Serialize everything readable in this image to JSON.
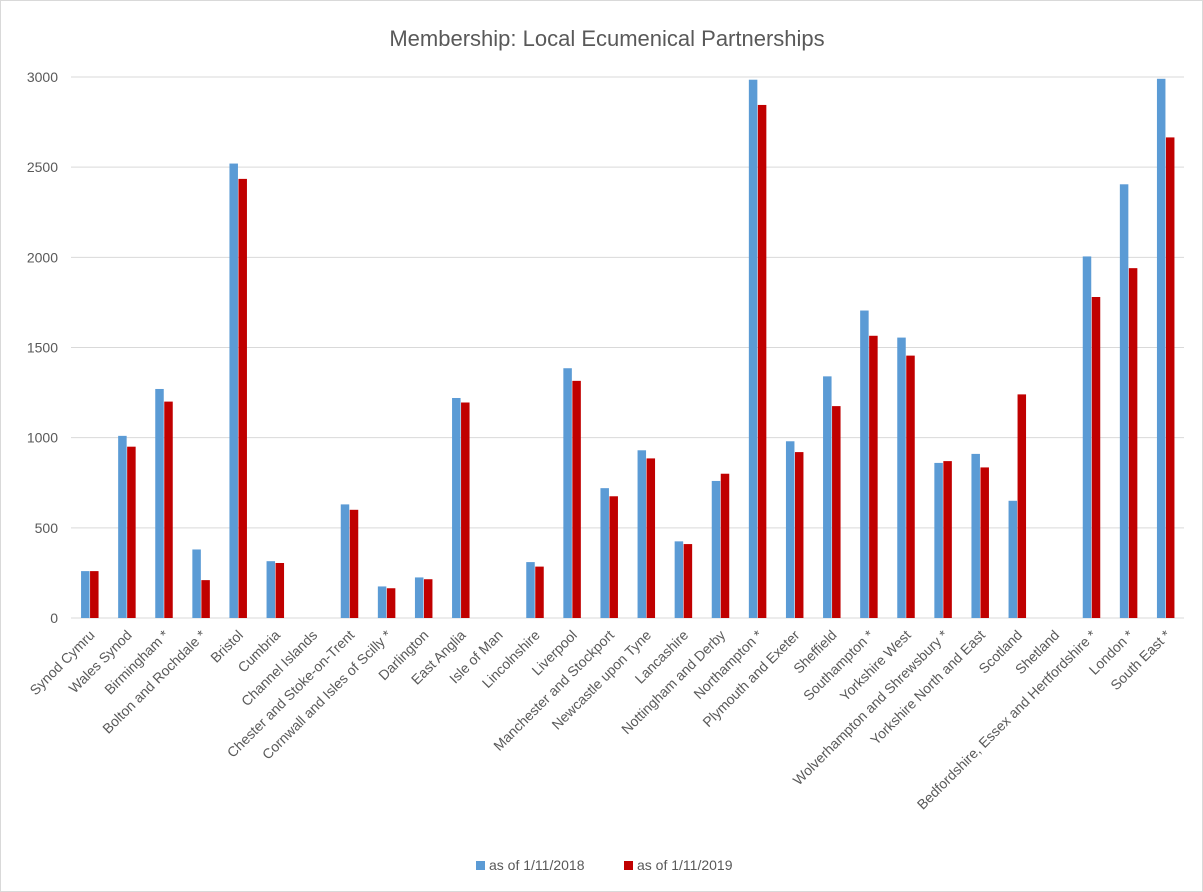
{
  "chart_data": {
    "type": "bar",
    "title": "Membership: Local Ecumenical Partnerships",
    "xlabel": "",
    "ylabel": "",
    "ylim": [
      0,
      3000
    ],
    "yticks": [
      0,
      500,
      1000,
      1500,
      2000,
      2500,
      3000
    ],
    "grid": true,
    "legend_position": "bottom",
    "categories": [
      "Synod Cymru",
      "Wales Synod",
      "Birmingham *",
      "Bolton and Rochdale *",
      "Bristol",
      "Cumbria",
      "Channel Islands",
      "Chester and Stoke-on-Trent",
      "Cornwall and Isles of Scilly *",
      "Darlington",
      "East Anglia",
      "Isle of Man",
      "Lincolnshire",
      "Liverpool",
      "Manchester and Stockport",
      "Newcastle upon Tyne",
      "Lancashire",
      "Nottingham and Derby",
      "Northampton *",
      "Plymouth and Exeter",
      "Sheffield",
      "Southampton *",
      "Yorkshire West",
      "Wolverhampton and Shrewsbury *",
      "Yorkshire North and East",
      "Scotland",
      "Shetland",
      "Bedfordshire, Essex and Hertfordshire *",
      "London *",
      "South East *"
    ],
    "series": [
      {
        "name": "as of 1/11/2018",
        "color": "#5b9bd5",
        "values": [
          260,
          1010,
          1270,
          380,
          2520,
          315,
          0,
          630,
          175,
          225,
          1220,
          0,
          310,
          1385,
          720,
          930,
          425,
          760,
          2985,
          980,
          1340,
          1705,
          1555,
          860,
          910,
          650,
          0,
          2005,
          2405,
          2990
        ]
      },
      {
        "name": "as of 1/11/2019",
        "color": "#c00000",
        "values": [
          260,
          950,
          1200,
          210,
          2435,
          305,
          0,
          600,
          165,
          215,
          1195,
          0,
          285,
          1315,
          675,
          885,
          410,
          800,
          2845,
          920,
          1175,
          1565,
          1455,
          870,
          835,
          1240,
          0,
          1780,
          1940,
          2665
        ]
      }
    ]
  }
}
